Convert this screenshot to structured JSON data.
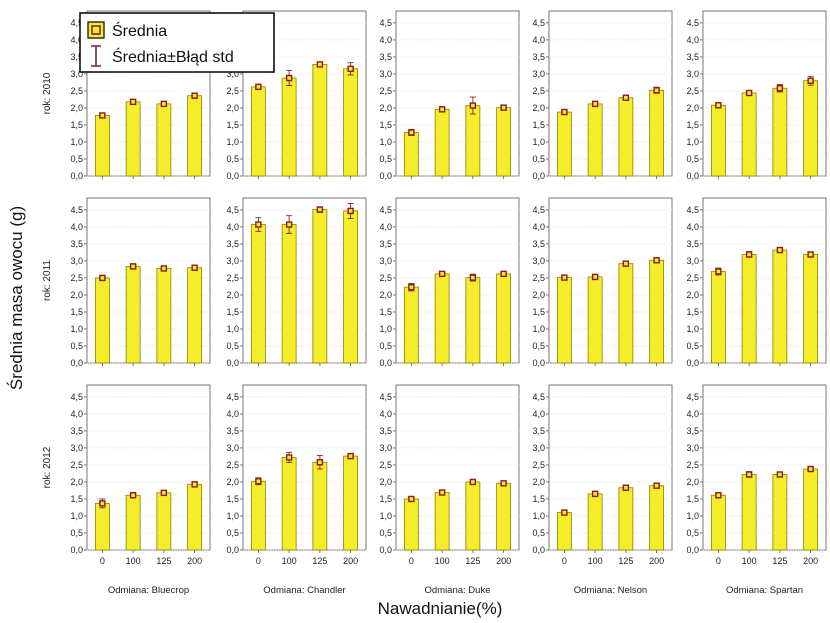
{
  "chart_data": {
    "type": "bar",
    "ylabel": "Średnia masa owocu (g)",
    "xlabel": "Nawadnianie(%)",
    "categories": [
      "0",
      "100",
      "125",
      "200"
    ],
    "yticks": [
      "0,0",
      "0,5",
      "1,0",
      "1,5",
      "2,0",
      "2,5",
      "3,0",
      "3,5",
      "4,0",
      "4,5"
    ],
    "ylim": [
      0,
      4.85
    ],
    "grid": true,
    "legend": {
      "position": "top-left",
      "mean_label": "Średnia",
      "error_label": "Średnia±Błąd std"
    },
    "colors": {
      "bar": "#f5ec2a",
      "bar_edge": "#8a8200",
      "marker": "#8b1a1a",
      "error": "#7a2a2a"
    },
    "rows": [
      "rok: 2010",
      "rok: 2011",
      "rok: 2012"
    ],
    "columns": [
      "Odmiana: Bluecrop",
      "Odmiana: Chandler",
      "Odmiana: Duke",
      "Odmiana: Nelson",
      "Odmiana: Spartan"
    ],
    "panels": [
      {
        "row": "rok: 2010",
        "col": "Odmiana: Bluecrop",
        "means": [
          1.78,
          2.18,
          2.12,
          2.36
        ],
        "se": [
          0.04,
          0.04,
          0.05,
          0.05
        ]
      },
      {
        "row": "rok: 2010",
        "col": "Odmiana: Chandler",
        "means": [
          2.62,
          2.88,
          3.28,
          3.15
        ],
        "se": [
          0.06,
          0.22,
          0.05,
          0.18
        ]
      },
      {
        "row": "rok: 2010",
        "col": "Odmiana: Duke",
        "means": [
          1.28,
          1.96,
          2.07,
          2.01
        ],
        "se": [
          0.09,
          0.04,
          0.25,
          0.06
        ]
      },
      {
        "row": "rok: 2010",
        "col": "Odmiana: Nelson",
        "means": [
          1.88,
          2.12,
          2.3,
          2.52
        ],
        "se": [
          0.05,
          0.05,
          0.04,
          0.09
        ]
      },
      {
        "row": "rok: 2010",
        "col": "Odmiana: Spartan",
        "means": [
          2.08,
          2.44,
          2.58,
          2.8
        ],
        "se": [
          0.07,
          0.06,
          0.11,
          0.13
        ]
      },
      {
        "row": "rok: 2011",
        "col": "Odmiana: Bluecrop",
        "means": [
          2.5,
          2.84,
          2.78,
          2.8
        ],
        "se": [
          0.03,
          0.04,
          0.04,
          0.04
        ]
      },
      {
        "row": "rok: 2011",
        "col": "Odmiana: Chandler",
        "means": [
          4.07,
          4.07,
          4.51,
          4.47
        ],
        "se": [
          0.2,
          0.26,
          0.08,
          0.22
        ]
      },
      {
        "row": "rok: 2011",
        "col": "Odmiana: Duke",
        "means": [
          2.23,
          2.62,
          2.51,
          2.62
        ],
        "se": [
          0.11,
          0.05,
          0.1,
          0.06
        ]
      },
      {
        "row": "rok: 2011",
        "col": "Odmiana: Nelson",
        "means": [
          2.51,
          2.53,
          2.92,
          3.02
        ],
        "se": [
          0.04,
          0.04,
          0.04,
          0.04
        ]
      },
      {
        "row": "rok: 2011",
        "col": "Odmiana: Spartan",
        "means": [
          2.69,
          3.19,
          3.32,
          3.19
        ],
        "se": [
          0.1,
          0.08,
          0.06,
          0.06
        ]
      },
      {
        "row": "rok: 2012",
        "col": "Odmiana: Bluecrop",
        "means": [
          1.37,
          1.61,
          1.68,
          1.93
        ],
        "se": [
          0.13,
          0.04,
          0.05,
          0.05
        ]
      },
      {
        "row": "rok: 2012",
        "col": "Odmiana: Chandler",
        "means": [
          2.02,
          2.72,
          2.58,
          2.76
        ],
        "se": [
          0.1,
          0.15,
          0.2,
          0.05
        ]
      },
      {
        "row": "rok: 2012",
        "col": "Odmiana: Duke",
        "means": [
          1.5,
          1.69,
          2.0,
          1.96
        ],
        "se": [
          0.04,
          0.04,
          0.05,
          0.04
        ]
      },
      {
        "row": "rok: 2012",
        "col": "Odmiana: Nelson",
        "means": [
          1.1,
          1.65,
          1.83,
          1.89
        ],
        "se": [
          0.05,
          0.04,
          0.04,
          0.04
        ]
      },
      {
        "row": "rok: 2012",
        "col": "Odmiana: Spartan",
        "means": [
          1.61,
          2.22,
          2.22,
          2.38
        ],
        "se": [
          0.05,
          0.08,
          0.05,
          0.05
        ]
      }
    ]
  }
}
